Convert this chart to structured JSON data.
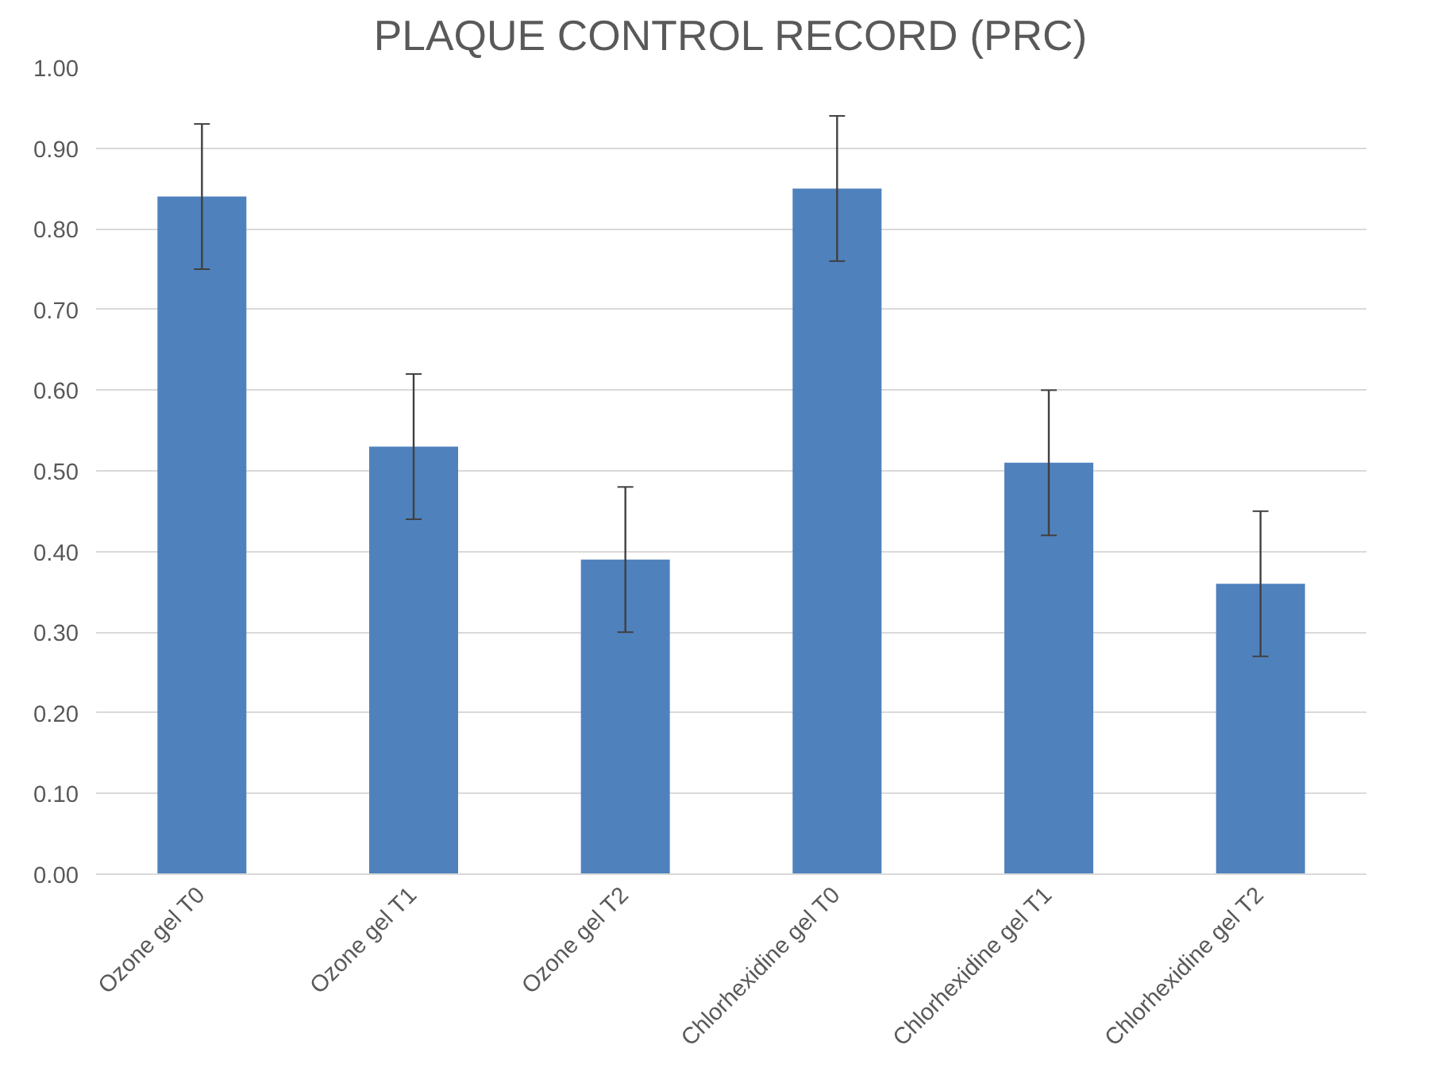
{
  "chart_data": {
    "type": "bar",
    "title": "PLAQUE CONTROL RECORD (PRC)",
    "categories": [
      "Ozone gel T0",
      "Ozone gel T1",
      "Ozone gel T2",
      "Chlorhexidine gel T0",
      "Chlorhexidine gel T1",
      "Chlorhexidine gel T2"
    ],
    "values": [
      0.84,
      0.53,
      0.39,
      0.85,
      0.51,
      0.36
    ],
    "errors": [
      0.09,
      0.09,
      0.09,
      0.09,
      0.09,
      0.09
    ],
    "color": "#4f81bd",
    "ylim": [
      0,
      1.0
    ],
    "yticks": [
      {
        "value": 0,
        "label": "0.00"
      },
      {
        "value": 0.1,
        "label": "0.10"
      },
      {
        "value": 0.2,
        "label": "0.20"
      },
      {
        "value": 0.3,
        "label": "0.30"
      },
      {
        "value": 0.4,
        "label": "0.40"
      },
      {
        "value": 0.5,
        "label": "0.50"
      },
      {
        "value": 0.6,
        "label": "0.60"
      },
      {
        "value": 0.7,
        "label": "0.70"
      },
      {
        "value": 0.8,
        "label": "0.80"
      },
      {
        "value": 0.9,
        "label": "0.90"
      },
      {
        "value": 1.0,
        "label": "1.00"
      }
    ],
    "grid": "y"
  }
}
